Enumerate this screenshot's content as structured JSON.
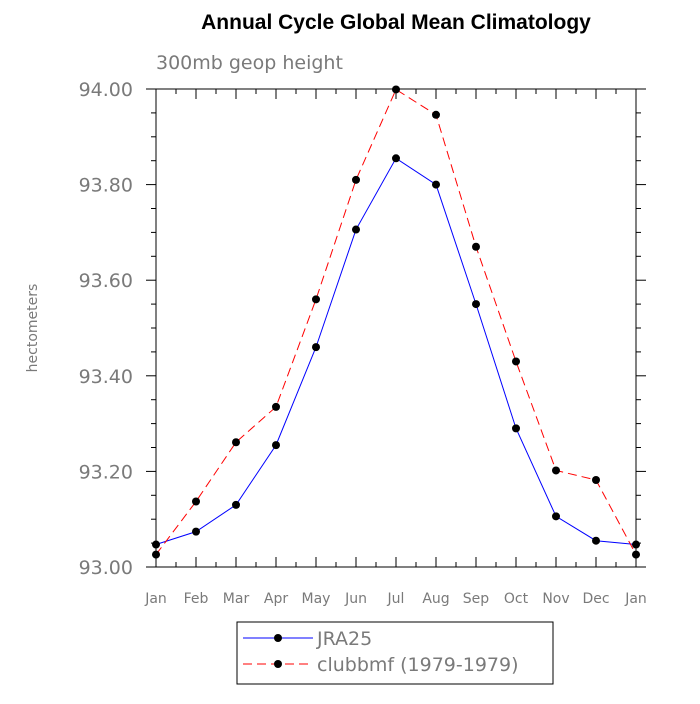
{
  "chart_data": {
    "type": "line",
    "title": "Annual Cycle Global Mean Climatology",
    "subtitle": "300mb geop height",
    "xlabel": "",
    "ylabel": "hectometers",
    "categories": [
      "Jan",
      "Feb",
      "Mar",
      "Apr",
      "May",
      "Jun",
      "Jul",
      "Aug",
      "Sep",
      "Oct",
      "Nov",
      "Dec",
      "Jan"
    ],
    "ylim": [
      93.0,
      94.0
    ],
    "yticks": [
      "93.00",
      "93.20",
      "93.40",
      "93.60",
      "93.80",
      "94.00"
    ],
    "grid": false,
    "legend_position": "bottom-center",
    "series": [
      {
        "name": "JRA25",
        "color": "#0000ff",
        "dash": "solid",
        "marker": "circle",
        "values": [
          93.047,
          93.074,
          93.13,
          93.255,
          93.46,
          93.706,
          93.855,
          93.8,
          93.55,
          93.29,
          93.106,
          93.055,
          93.047
        ]
      },
      {
        "name": "clubbmf (1979-1979)",
        "color": "#ff0000",
        "dash": "dashed",
        "marker": "circle",
        "values": [
          93.026,
          93.137,
          93.261,
          93.335,
          93.56,
          93.81,
          93.999,
          93.946,
          93.67,
          93.43,
          93.202,
          93.182,
          93.026
        ]
      }
    ]
  }
}
